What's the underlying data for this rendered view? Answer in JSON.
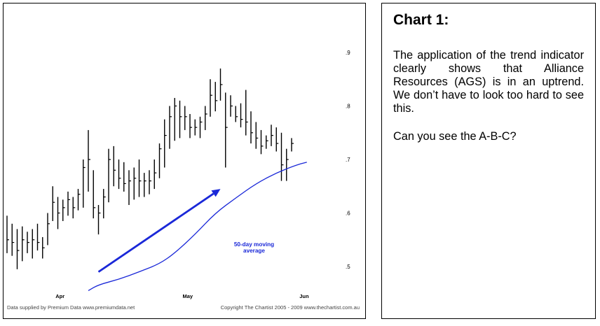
{
  "chart_data": {
    "type": "bar",
    "subtype": "ohlc-price-bars",
    "title": "",
    "y_ticks": [
      ".9",
      ".8",
      ".7",
      ".6",
      ".5"
    ],
    "y_tick_values": [
      0.9,
      0.8,
      0.7,
      0.6,
      0.5
    ],
    "ylim": [
      0.455,
      0.97
    ],
    "x_ticks": [
      {
        "label": "Apr",
        "bar": 5
      },
      {
        "label": "May",
        "bar": 30
      },
      {
        "label": "Jun",
        "bar": 53
      }
    ],
    "grid": false,
    "colors": {
      "bars": "#000000",
      "moving_average": "#1a28d8",
      "annotation": "#1a28d8"
    },
    "bars": [
      {
        "h": 0.595,
        "l": 0.525,
        "c": 0.55
      },
      {
        "h": 0.58,
        "l": 0.52,
        "c": 0.545
      },
      {
        "h": 0.57,
        "l": 0.495,
        "c": 0.53
      },
      {
        "h": 0.575,
        "l": 0.51,
        "c": 0.55
      },
      {
        "h": 0.565,
        "l": 0.525,
        "c": 0.545
      },
      {
        "h": 0.57,
        "l": 0.515,
        "c": 0.55
      },
      {
        "h": 0.58,
        "l": 0.53,
        "c": 0.545
      },
      {
        "h": 0.555,
        "l": 0.515,
        "c": 0.535
      },
      {
        "h": 0.6,
        "l": 0.54,
        "c": 0.58
      },
      {
        "h": 0.65,
        "l": 0.585,
        "c": 0.62
      },
      {
        "h": 0.63,
        "l": 0.57,
        "c": 0.6
      },
      {
        "h": 0.625,
        "l": 0.585,
        "c": 0.61
      },
      {
        "h": 0.64,
        "l": 0.595,
        "c": 0.625
      },
      {
        "h": 0.63,
        "l": 0.59,
        "c": 0.61
      },
      {
        "h": 0.645,
        "l": 0.605,
        "c": 0.635
      },
      {
        "h": 0.7,
        "l": 0.61,
        "c": 0.685
      },
      {
        "h": 0.755,
        "l": 0.64,
        "c": 0.7
      },
      {
        "h": 0.68,
        "l": 0.59,
        "c": 0.61
      },
      {
        "h": 0.615,
        "l": 0.56,
        "c": 0.6
      },
      {
        "h": 0.645,
        "l": 0.59,
        "c": 0.63
      },
      {
        "h": 0.72,
        "l": 0.62,
        "c": 0.7
      },
      {
        "h": 0.725,
        "l": 0.65,
        "c": 0.68
      },
      {
        "h": 0.7,
        "l": 0.645,
        "c": 0.665
      },
      {
        "h": 0.695,
        "l": 0.64,
        "c": 0.655
      },
      {
        "h": 0.68,
        "l": 0.615,
        "c": 0.66
      },
      {
        "h": 0.685,
        "l": 0.625,
        "c": 0.665
      },
      {
        "h": 0.7,
        "l": 0.63,
        "c": 0.66
      },
      {
        "h": 0.675,
        "l": 0.63,
        "c": 0.66
      },
      {
        "h": 0.68,
        "l": 0.635,
        "c": 0.66
      },
      {
        "h": 0.7,
        "l": 0.645,
        "c": 0.675
      },
      {
        "h": 0.73,
        "l": 0.665,
        "c": 0.72
      },
      {
        "h": 0.775,
        "l": 0.685,
        "c": 0.745
      },
      {
        "h": 0.8,
        "l": 0.72,
        "c": 0.78
      },
      {
        "h": 0.815,
        "l": 0.735,
        "c": 0.8
      },
      {
        "h": 0.81,
        "l": 0.74,
        "c": 0.78
      },
      {
        "h": 0.8,
        "l": 0.755,
        "c": 0.78
      },
      {
        "h": 0.785,
        "l": 0.74,
        "c": 0.76
      },
      {
        "h": 0.775,
        "l": 0.745,
        "c": 0.76
      },
      {
        "h": 0.78,
        "l": 0.74,
        "c": 0.77
      },
      {
        "h": 0.8,
        "l": 0.755,
        "c": 0.785
      },
      {
        "h": 0.85,
        "l": 0.78,
        "c": 0.82
      },
      {
        "h": 0.845,
        "l": 0.79,
        "c": 0.81
      },
      {
        "h": 0.87,
        "l": 0.81,
        "c": 0.84
      },
      {
        "h": 0.825,
        "l": 0.685,
        "c": 0.76
      },
      {
        "h": 0.82,
        "l": 0.78,
        "c": 0.8
      },
      {
        "h": 0.8,
        "l": 0.77,
        "c": 0.78
      },
      {
        "h": 0.805,
        "l": 0.76,
        "c": 0.775
      },
      {
        "h": 0.83,
        "l": 0.745,
        "c": 0.77
      },
      {
        "h": 0.79,
        "l": 0.73,
        "c": 0.75
      },
      {
        "h": 0.77,
        "l": 0.72,
        "c": 0.74
      },
      {
        "h": 0.755,
        "l": 0.71,
        "c": 0.725
      },
      {
        "h": 0.745,
        "l": 0.72,
        "c": 0.735
      },
      {
        "h": 0.765,
        "l": 0.725,
        "c": 0.745
      },
      {
        "h": 0.76,
        "l": 0.715,
        "c": 0.73
      },
      {
        "h": 0.75,
        "l": 0.66,
        "c": 0.69
      },
      {
        "h": 0.72,
        "l": 0.66,
        "c": 0.7
      },
      {
        "h": 0.74,
        "l": 0.715,
        "c": 0.73
      }
    ],
    "moving_average": [
      {
        "bar": 16,
        "v": 0.455
      },
      {
        "bar": 18,
        "v": 0.466
      },
      {
        "bar": 22,
        "v": 0.476
      },
      {
        "bar": 26,
        "v": 0.49
      },
      {
        "bar": 30,
        "v": 0.505
      },
      {
        "bar": 33,
        "v": 0.525
      },
      {
        "bar": 37,
        "v": 0.56
      },
      {
        "bar": 41,
        "v": 0.6
      },
      {
        "bar": 45,
        "v": 0.628
      },
      {
        "bar": 49,
        "v": 0.655
      },
      {
        "bar": 53,
        "v": 0.675
      },
      {
        "bar": 57,
        "v": 0.69
      },
      {
        "bar": 59,
        "v": 0.695
      }
    ],
    "trend_arrow": {
      "from_bar": 18,
      "from_v": 0.49,
      "to_bar": 42,
      "to_v": 0.645
    },
    "annotations": [
      {
        "text_lines": [
          "50-day moving",
          "average"
        ],
        "bar": 50,
        "v": 0.58
      }
    ],
    "footer_left": "Data supplied by Premium Data  www.premiumdata.net",
    "footer_right": "Copyright The Chartist 2005 - 2009  www.thechartist.com.au"
  },
  "panel": {
    "title": "Chart 1:",
    "paragraph1": "The application of the trend indicator clearly shows that Alliance Resources (AGS) is in an uptrend. We don’t have to look too hard to see this.",
    "paragraph2": "Can you see the A-B-C?"
  }
}
